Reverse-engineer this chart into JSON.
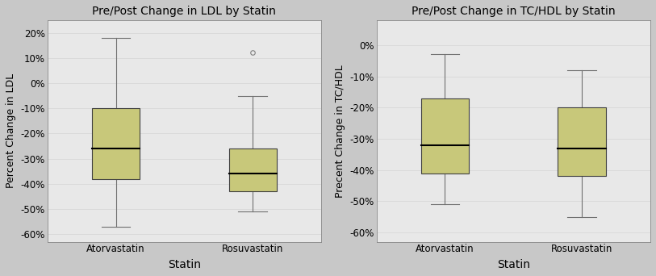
{
  "left_title": "Pre/Post Change in LDL by Statin",
  "right_title": "Pre/Post Change in TC/HDL by Statin",
  "left_ylabel": "Percent Change in LDL",
  "right_ylabel": "Precent Change in TC/HDL",
  "xlabel": "Statin",
  "categories": [
    "Atorvastatin",
    "Rosuvastatin"
  ],
  "left_boxes": [
    {
      "med": -26,
      "q1": -38,
      "q3": -10,
      "whislo": -57,
      "whishi": 18,
      "fliers": []
    },
    {
      "med": -36,
      "q1": -43,
      "q3": -26,
      "whislo": -51,
      "whishi": -5,
      "fliers": [
        12
      ]
    }
  ],
  "right_boxes": [
    {
      "med": -32,
      "q1": -41,
      "q3": -17,
      "whislo": -51,
      "whishi": -3,
      "fliers": []
    },
    {
      "med": -33,
      "q1": -42,
      "q3": -20,
      "whislo": -55,
      "whishi": -8,
      "fliers": []
    }
  ],
  "left_ylim": [
    -63,
    25
  ],
  "right_ylim": [
    -63,
    8
  ],
  "left_yticks": [
    -60,
    -50,
    -40,
    -30,
    -20,
    -10,
    0,
    10,
    20
  ],
  "right_yticks": [
    -60,
    -50,
    -40,
    -30,
    -20,
    -10,
    0
  ],
  "box_color": "#c8c87a",
  "box_edge_color": "#404040",
  "median_color": "#000000",
  "whisker_color": "#707070",
  "flier_color": "#808080",
  "bg_color": "#e8e8e8",
  "grid_color": "#d8d8d8",
  "outer_bg": "#c8c8c8",
  "title_fontsize": 10,
  "label_fontsize": 9,
  "tick_fontsize": 8.5,
  "xlabel_fontsize": 10,
  "xlabel_fontweight": "normal",
  "box_width": 0.35,
  "positions": [
    1,
    2
  ],
  "xlim": [
    0.5,
    2.5
  ]
}
